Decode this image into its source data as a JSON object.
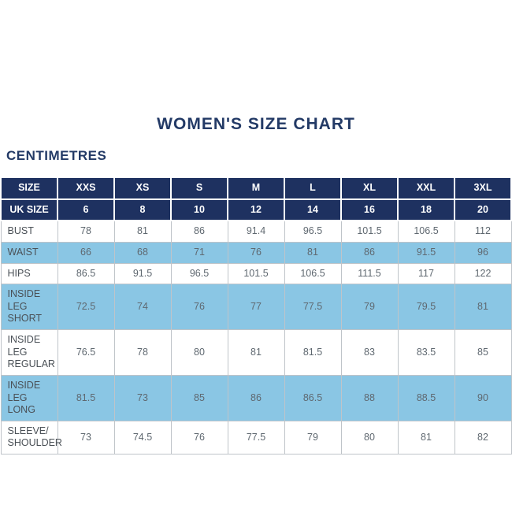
{
  "page": {
    "title": "WOMEN'S SIZE CHART",
    "units_label": "CENTIMETRES"
  },
  "colors": {
    "navy_header": "#1e3160",
    "light_blue_row": "#8ac6e4",
    "border": "#bfc4c9",
    "title_text": "#233a66",
    "value_text": "#5f6870"
  },
  "chart_data": {
    "type": "table",
    "title": "WOMEN'S SIZE CHART",
    "units": "CENTIMETRES",
    "header_rows": [
      {
        "cells": [
          "SIZE",
          "XXS",
          "XS",
          "S",
          "M",
          "L",
          "XL",
          "XXL",
          "3XL"
        ]
      },
      {
        "cells": [
          "UK SIZE",
          "6",
          "8",
          "10",
          "12",
          "14",
          "16",
          "18",
          "20"
        ]
      }
    ],
    "rows": [
      {
        "label": "BUST",
        "values": [
          78,
          81,
          86,
          91.4,
          96.5,
          101.5,
          106.5,
          112
        ]
      },
      {
        "label": "WAIST",
        "values": [
          66,
          68,
          71,
          76,
          81,
          86,
          91.5,
          96
        ]
      },
      {
        "label": "HIPS",
        "values": [
          86.5,
          91.5,
          96.5,
          101.5,
          106.5,
          111.5,
          117,
          122
        ]
      },
      {
        "label": "INSIDE LEG\nSHORT",
        "values": [
          72.5,
          74,
          76,
          77,
          77.5,
          79,
          79.5,
          81
        ]
      },
      {
        "label": "INSIDE LEG\nREGULAR",
        "values": [
          76.5,
          78,
          80,
          81,
          81.5,
          83,
          83.5,
          85
        ]
      },
      {
        "label": "INSIDE LEG\nLONG",
        "values": [
          81.5,
          73,
          85,
          86,
          86.5,
          88,
          88.5,
          90
        ]
      },
      {
        "label": "SLEEVE/\nSHOULDER",
        "values": [
          73,
          74.5,
          76,
          77.5,
          79,
          80,
          81,
          82
        ]
      }
    ]
  }
}
